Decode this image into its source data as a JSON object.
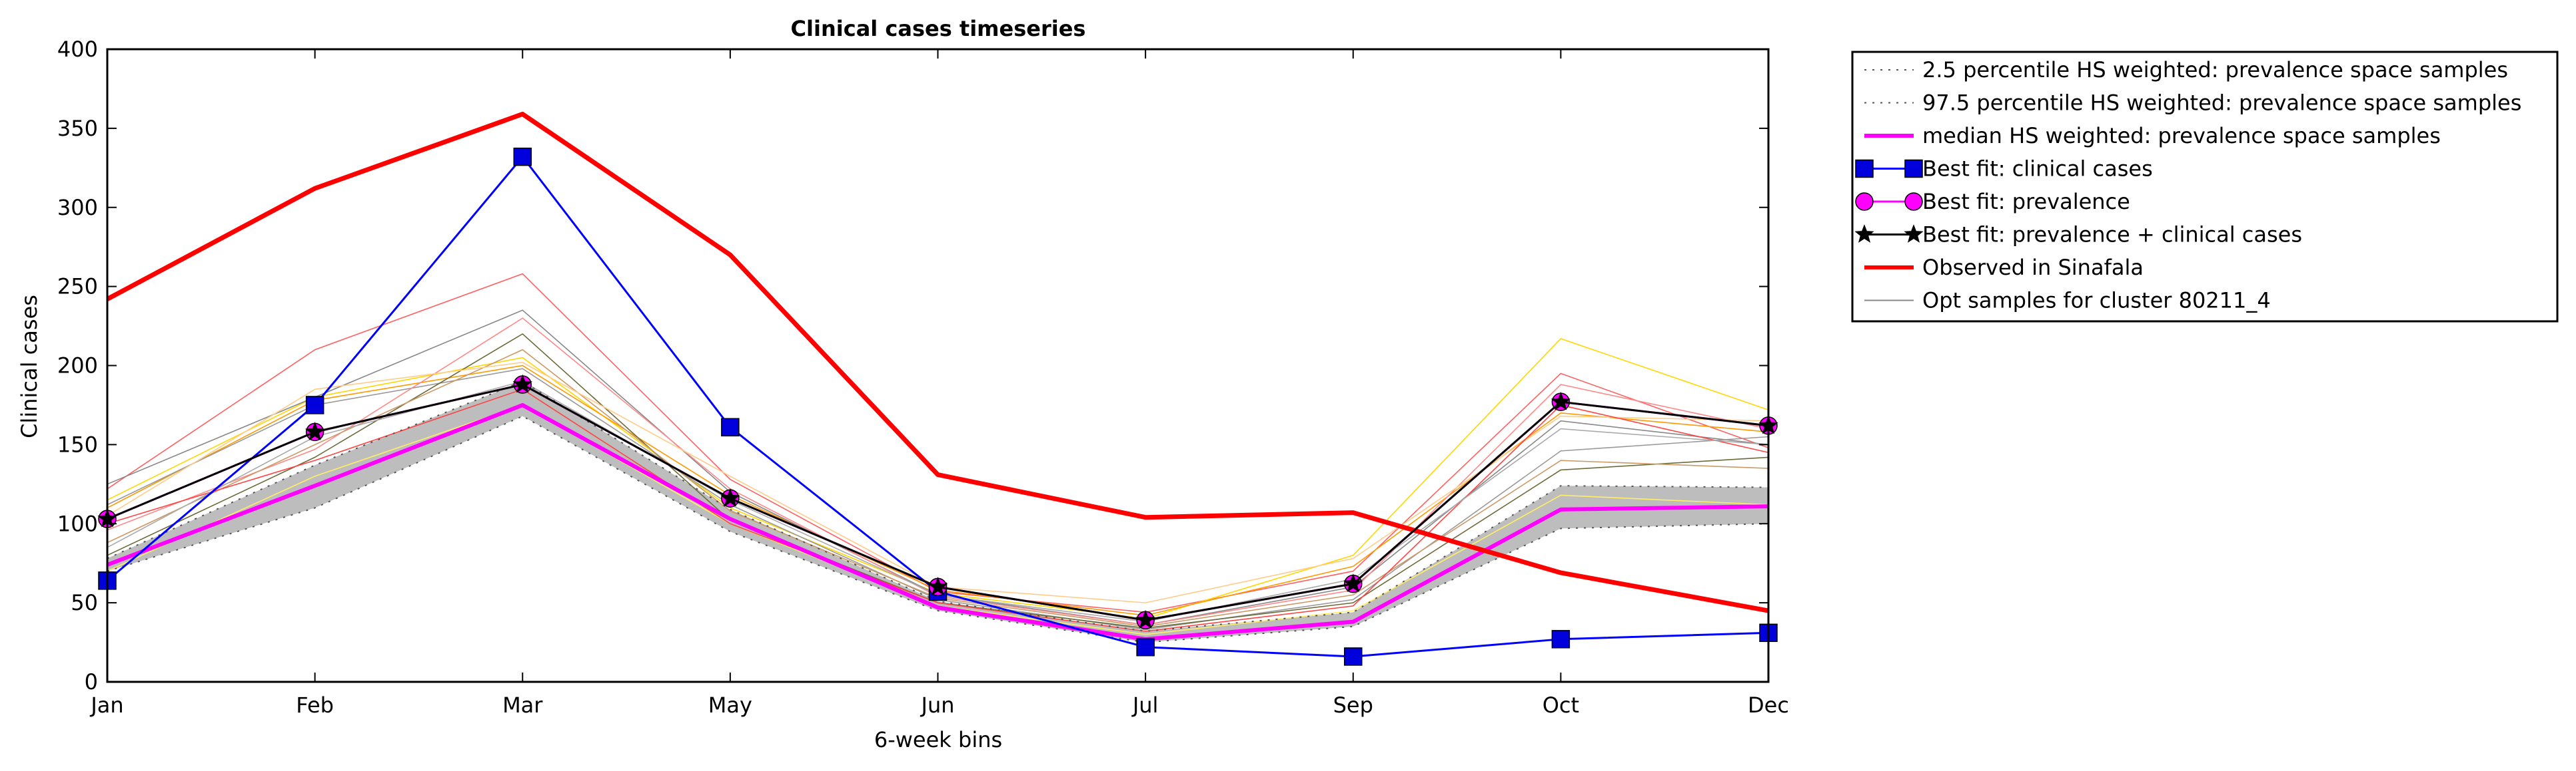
{
  "chart_data": {
    "type": "line",
    "title": "Clinical cases timeseries",
    "xlabel": "6-week bins",
    "ylabel": "Clinical cases",
    "categories": [
      "Jan",
      "Feb",
      "Mar",
      "May",
      "Jun",
      "Jul",
      "Sep",
      "Oct",
      "Dec"
    ],
    "y_ticks": [
      "0",
      "50",
      "100",
      "150",
      "200",
      "250",
      "300",
      "350",
      "400"
    ],
    "ylim": [
      0,
      400
    ],
    "grid": false,
    "legend_placement": "outside-top-right",
    "band": {
      "fill": "#bdbdbd",
      "lower": [
        70,
        110,
        168,
        95,
        45,
        25,
        35,
        97,
        100
      ],
      "upper": [
        78,
        137,
        190,
        109,
        51,
        32,
        44,
        124,
        123
      ]
    },
    "samples": [
      {
        "color": "#ff6060",
        "values": [
          122,
          210,
          258,
          128,
          57,
          44,
          70,
          195,
          148
        ]
      },
      {
        "color": "#ffd700",
        "values": [
          115,
          180,
          205,
          110,
          56,
          40,
          80,
          217,
          172
        ]
      },
      {
        "color": "#ff9900",
        "values": [
          110,
          178,
          200,
          118,
          58,
          42,
          73,
          170,
          158
        ]
      },
      {
        "color": "#888888",
        "values": [
          125,
          180,
          235,
          120,
          55,
          36,
          60,
          165,
          150
        ]
      },
      {
        "color": "#999999",
        "values": [
          112,
          175,
          198,
          112,
          52,
          33,
          52,
          146,
          155
        ]
      },
      {
        "color": "#6b6b3a",
        "values": [
          80,
          142,
          220,
          102,
          50,
          34,
          50,
          134,
          142
        ]
      },
      {
        "color": "#ff8888",
        "values": [
          96,
          147,
          230,
          122,
          54,
          36,
          58,
          188,
          160
        ]
      },
      {
        "color": "#ffee66",
        "values": [
          70,
          130,
          175,
          100,
          48,
          30,
          45,
          118,
          112
        ]
      },
      {
        "color": "#cc9966",
        "values": [
          88,
          150,
          210,
          108,
          53,
          35,
          55,
          140,
          135
        ]
      },
      {
        "color": "#ffcc88",
        "values": [
          105,
          185,
          202,
          130,
          60,
          50,
          78,
          168,
          165
        ]
      },
      {
        "color": "#ff4444",
        "values": [
          100,
          140,
          185,
          100,
          50,
          32,
          48,
          175,
          145
        ]
      },
      {
        "color": "#aaaaaa",
        "values": [
          85,
          155,
          190,
          115,
          55,
          38,
          65,
          160,
          150
        ]
      }
    ],
    "series": [
      {
        "name": "2.5 percentile HS weighted: prevalence space samples",
        "color": "#555555",
        "style": "dotted",
        "marker": "none",
        "width": 2,
        "values": [
          70,
          110,
          168,
          95,
          45,
          25,
          35,
          97,
          100
        ]
      },
      {
        "name": "97.5 percentile HS weighted: prevalence space samples",
        "color": "#555555",
        "style": "dotted",
        "marker": "none",
        "width": 2,
        "values": [
          78,
          137,
          190,
          109,
          51,
          32,
          44,
          124,
          123
        ]
      },
      {
        "name": "median HS weighted: prevalence space samples",
        "color": "#ff00ff",
        "style": "solid",
        "marker": "none",
        "width": 6,
        "values": [
          74,
          124,
          175,
          103,
          47,
          27,
          38,
          109,
          111
        ]
      },
      {
        "name": "Best fit: clinical cases",
        "color": "#0000ff",
        "style": "solid",
        "marker": "square",
        "markerFill": "#0000dd",
        "width": 3,
        "values": [
          64,
          175,
          332,
          161,
          57,
          22,
          16,
          27,
          31
        ]
      },
      {
        "name": "Best fit: prevalence",
        "color": "#ff00ff",
        "style": "solid",
        "marker": "circle",
        "markerFill": "#ff00ff",
        "width": 3,
        "values": [
          103,
          158,
          188,
          116,
          60,
          39,
          62,
          177,
          162
        ]
      },
      {
        "name": "Best fit: prevalence + clinical cases",
        "color": "#000000",
        "style": "solid",
        "marker": "star",
        "markerFill": "#000000",
        "width": 3,
        "values": [
          103,
          158,
          188,
          116,
          60,
          39,
          62,
          177,
          162
        ]
      },
      {
        "name": "Observed in Sinafala",
        "color": "#ff0000",
        "style": "solid",
        "marker": "none",
        "width": 7,
        "values": [
          242,
          312,
          359,
          270,
          131,
          104,
          107,
          69,
          45
        ]
      },
      {
        "name": "Opt samples for cluster 80211_4",
        "color": "#888888",
        "style": "solid",
        "marker": "none",
        "width": 2,
        "values": null
      }
    ]
  }
}
